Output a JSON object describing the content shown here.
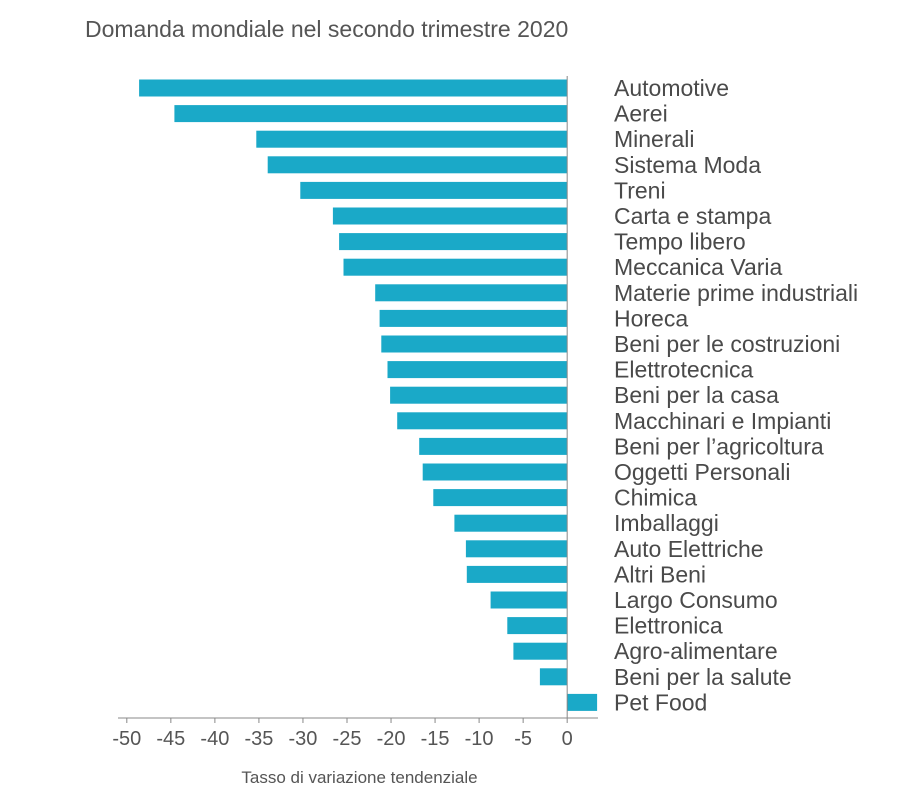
{
  "chart_data": {
    "type": "bar",
    "orientation": "horizontal",
    "title": "Domanda mondiale nel secondo trimestre 2020",
    "xlabel": "Tasso di variazione tendenziale",
    "ylabel": "",
    "xlim": [
      -51,
      3.5
    ],
    "xticks": [
      -50,
      -45,
      -40,
      -35,
      -30,
      -25,
      -20,
      -15,
      -10,
      -5,
      0
    ],
    "xtick_labels": [
      "-50",
      "-45",
      "-40",
      "-35",
      "-30",
      "-25",
      "-20",
      "-15",
      "-10",
      "-5",
      "0"
    ],
    "grid": false,
    "legend": "none",
    "bar_color": "#1aa9c8",
    "categories": [
      "Automotive",
      "Aerei",
      "Minerali",
      "Sistema Moda",
      "Treni",
      "Carta e stampa",
      "Tempo libero",
      "Meccanica Varia",
      "Materie prime industriali",
      "Horeca",
      "Beni per le costruzioni",
      "Elettrotecnica",
      "Beni per la casa",
      "Macchinari e Impianti",
      "Beni per l’agricoltura",
      "Oggetti Personali",
      "Chimica",
      "Imballaggi",
      "Auto Elettriche",
      "Altri Beni",
      "Largo Consumo",
      "Elettronica",
      "Agro-alimentare",
      "Beni per la salute",
      "Pet Food"
    ],
    "values": [
      -48.6,
      -44.6,
      -35.3,
      -34.0,
      -30.3,
      -26.6,
      -25.9,
      -25.4,
      -21.8,
      -21.3,
      -21.1,
      -20.4,
      -20.1,
      -19.3,
      -16.8,
      -16.4,
      -15.2,
      -12.8,
      -11.5,
      -11.4,
      -8.7,
      -6.8,
      -6.1,
      -3.1,
      3.4
    ]
  }
}
